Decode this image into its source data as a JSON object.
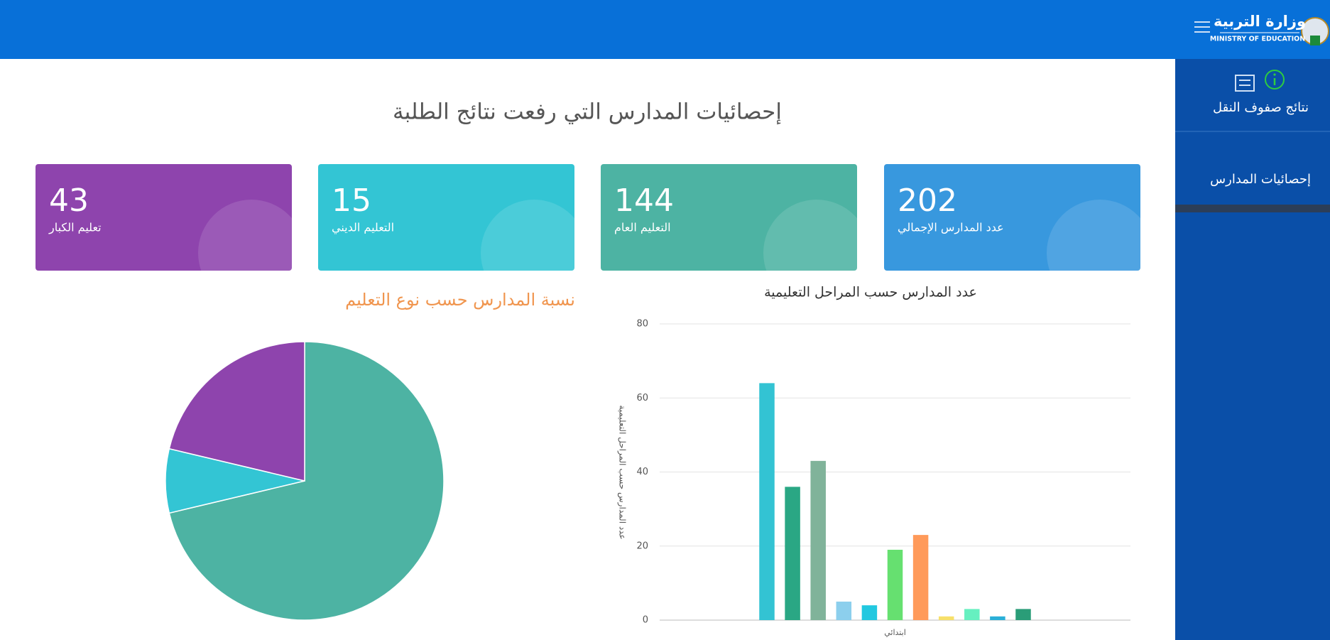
{
  "header": {
    "logo_title": "وزارة التربية",
    "logo_subtitle": "MINISTRY OF EDUCATION"
  },
  "sidebar": {
    "items": [
      "نتائج صفوف النقل",
      "إحصائيات المدارس"
    ]
  },
  "page_title": "إحصائيات المدارس التي رفعت نتائج الطلبة",
  "cards": [
    {
      "value": 43,
      "label": "تعليم الكبار",
      "color": "#8e44ad"
    },
    {
      "value": 15,
      "label": "التعليم الديني",
      "color": "#33c5d4"
    },
    {
      "value": 144,
      "label": "التعليم العام",
      "color": "#4db3a3"
    },
    {
      "value": 202,
      "label": "عدد المدارس الإجمالي",
      "color": "#3898de"
    }
  ],
  "chart_data": [
    {
      "type": "pie",
      "title": "نسبة المدارس حسب نوع التعليم",
      "values": [
        144,
        15,
        43
      ],
      "colors": [
        "#4db3a3",
        "#33c5d4",
        "#8e44ad"
      ]
    },
    {
      "type": "bar",
      "title": "عدد المدارس حسب المراحل التعليمية",
      "y_label": "عدد المدارس حسب المراحل التعليمية",
      "categories": [
        "ابتدائي"
      ],
      "series": [
        {
          "color": "#33c3d3",
          "values": [
            64
          ]
        },
        {
          "color": "#2aa784",
          "values": [
            36
          ]
        },
        {
          "color": "#80b39a",
          "values": [
            43
          ]
        },
        {
          "color": "#8ccfed",
          "values": [
            5
          ]
        },
        {
          "color": "#22c8e0",
          "values": [
            4
          ]
        },
        {
          "color": "#66e070",
          "values": [
            19
          ]
        },
        {
          "color": "#ff9a5a",
          "values": [
            23
          ]
        },
        {
          "color": "#f7e06a",
          "values": [
            1
          ]
        },
        {
          "color": "#66f0c0",
          "values": [
            3
          ]
        },
        {
          "color": "#2aafd8",
          "values": [
            1
          ]
        },
        {
          "color": "#2a9d78",
          "values": [
            3
          ]
        }
      ],
      "ylim": [
        0,
        80
      ],
      "yticks": [
        0,
        20,
        40,
        60,
        80
      ],
      "grid": true
    }
  ]
}
